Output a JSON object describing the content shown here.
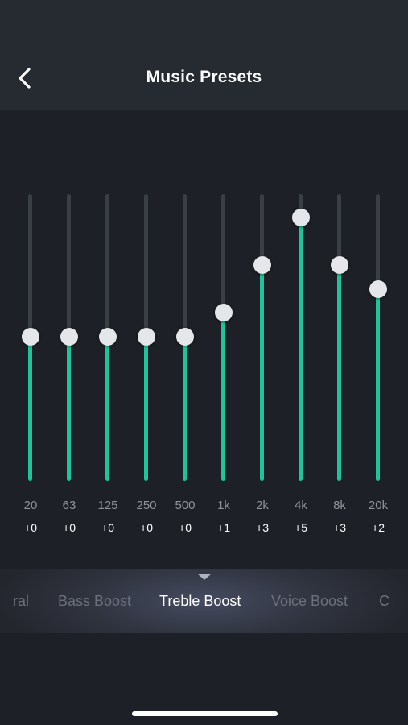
{
  "header": {
    "title": "Music Presets",
    "back_icon": "chevron-left-icon"
  },
  "equalizer": {
    "scale": {
      "min": -6,
      "max": 6
    },
    "bands": [
      {
        "freq": "20",
        "gain_label": "+0",
        "gain": 0
      },
      {
        "freq": "63",
        "gain_label": "+0",
        "gain": 0
      },
      {
        "freq": "125",
        "gain_label": "+0",
        "gain": 0
      },
      {
        "freq": "250",
        "gain_label": "+0",
        "gain": 0
      },
      {
        "freq": "500",
        "gain_label": "+0",
        "gain": 0
      },
      {
        "freq": "1k",
        "gain_label": "+1",
        "gain": 1
      },
      {
        "freq": "2k",
        "gain_label": "+3",
        "gain": 3
      },
      {
        "freq": "4k",
        "gain_label": "+5",
        "gain": 5
      },
      {
        "freq": "8k",
        "gain_label": "+3",
        "gain": 3
      },
      {
        "freq": "20k",
        "gain_label": "+2",
        "gain": 2
      }
    ]
  },
  "presets": {
    "items": [
      {
        "label": "ral"
      },
      {
        "label": "Bass Boost"
      },
      {
        "label": "Treble Boost",
        "selected": true
      },
      {
        "label": "Voice Boost"
      },
      {
        "label": "C"
      }
    ],
    "selected_label": "Treble Boost"
  },
  "colors": {
    "accent": "#1ec49a",
    "background": "#1d2026",
    "header": "#262a31",
    "track": "#3a3e45",
    "thumb": "#e4e6ea"
  }
}
